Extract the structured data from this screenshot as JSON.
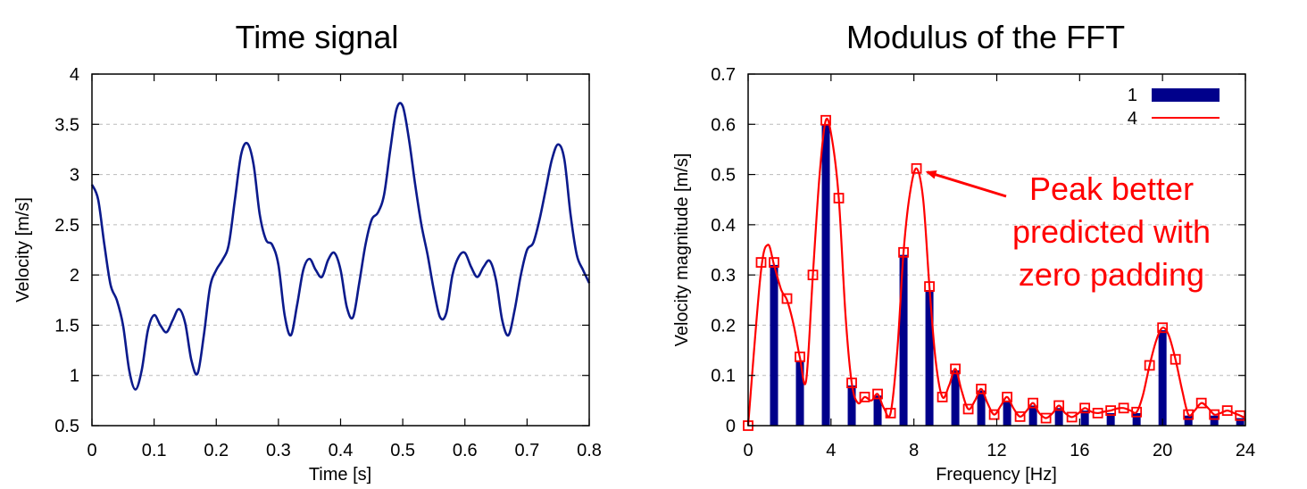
{
  "chart_data": [
    {
      "type": "line",
      "title": "Time signal",
      "xlabel": "Time [s]",
      "ylabel": "Velocity [m/s]",
      "xlim": [
        0,
        0.8
      ],
      "ylim": [
        0.5,
        4
      ],
      "xticks": [
        "0",
        "0.1",
        "0.2",
        "0.3",
        "0.4",
        "0.5",
        "0.6",
        "0.7",
        "0.8"
      ],
      "yticks": [
        "0.5",
        "1",
        "1.5",
        "2",
        "2.5",
        "3",
        "3.5",
        "4"
      ],
      "grid": "horizontal dashed",
      "color": "#0b1a8c",
      "series": [
        {
          "x": [
            0,
            0.01,
            0.02,
            0.03,
            0.04,
            0.05,
            0.06,
            0.07,
            0.08,
            0.09,
            0.1,
            0.11,
            0.12,
            0.13,
            0.14,
            0.15,
            0.16,
            0.17,
            0.18,
            0.19,
            0.2,
            0.21,
            0.22,
            0.23,
            0.24,
            0.25,
            0.26,
            0.27,
            0.28,
            0.29,
            0.3,
            0.31,
            0.32,
            0.33,
            0.34,
            0.35,
            0.36,
            0.37,
            0.38,
            0.39,
            0.4,
            0.41,
            0.42,
            0.43,
            0.44,
            0.45,
            0.46,
            0.47,
            0.48,
            0.49,
            0.5,
            0.51,
            0.52,
            0.53,
            0.54,
            0.55,
            0.56,
            0.57,
            0.58,
            0.59,
            0.6,
            0.61,
            0.62,
            0.63,
            0.64,
            0.65,
            0.66,
            0.67,
            0.68,
            0.69,
            0.7,
            0.71,
            0.72,
            0.73,
            0.74,
            0.75,
            0.76,
            0.77,
            0.78,
            0.79,
            0.8
          ],
          "values": [
            2.9,
            2.75,
            2.3,
            1.9,
            1.75,
            1.5,
            1.05,
            0.86,
            1.05,
            1.45,
            1.6,
            1.5,
            1.43,
            1.55,
            1.66,
            1.52,
            1.15,
            1.02,
            1.4,
            1.88,
            2.05,
            2.15,
            2.3,
            2.75,
            3.2,
            3.31,
            3.1,
            2.6,
            2.35,
            2.3,
            2.1,
            1.6,
            1.4,
            1.7,
            2.05,
            2.16,
            2.05,
            1.98,
            2.15,
            2.22,
            2.05,
            1.68,
            1.58,
            1.92,
            2.3,
            2.55,
            2.62,
            2.8,
            3.25,
            3.65,
            3.68,
            3.35,
            2.9,
            2.5,
            2.2,
            1.85,
            1.58,
            1.62,
            2.0,
            2.18,
            2.22,
            2.08,
            1.98,
            2.08,
            2.14,
            1.95,
            1.55,
            1.4,
            1.65,
            2.0,
            2.25,
            2.32,
            2.55,
            2.85,
            3.15,
            3.3,
            3.15,
            2.6,
            2.2,
            2.05,
            1.92
          ]
        }
      ]
    },
    {
      "type": "bar",
      "title": "Modulus of the FFT",
      "xlabel": "Frequency [Hz]",
      "ylabel": "Velocity magnitude [m/s]",
      "xlim": [
        0,
        24
      ],
      "ylim": [
        0,
        0.7
      ],
      "xticks": [
        "0",
        "4",
        "8",
        "12",
        "16",
        "20",
        "24"
      ],
      "yticks": [
        "0",
        "0.1",
        "0.2",
        "0.3",
        "0.4",
        "0.5",
        "0.6",
        "0.7"
      ],
      "grid": "horizontal dashed",
      "legend_position": "top-right",
      "series": [
        {
          "name": "1",
          "type": "bar",
          "color": "#00008b",
          "x": [
            1.25,
            2.5,
            3.75,
            5.0,
            6.25,
            7.5,
            8.75,
            10.0,
            11.25,
            12.5,
            13.75,
            15.0,
            16.25,
            17.5,
            18.75,
            20.0,
            21.25,
            22.5,
            23.75
          ],
          "values": [
            0.32,
            0.13,
            0.6,
            0.08,
            0.06,
            0.34,
            0.27,
            0.11,
            0.07,
            0.05,
            0.04,
            0.035,
            0.03,
            0.025,
            0.025,
            0.19,
            0.02,
            0.02,
            0.015
          ]
        },
        {
          "name": "4",
          "type": "line",
          "color": "#ff0000",
          "markers_x": [
            0,
            0.625,
            1.25,
            1.875,
            2.5,
            3.125,
            3.75,
            4.375,
            5.0,
            5.625,
            6.25,
            6.875,
            7.5,
            8.125,
            8.75,
            9.375,
            10.0,
            10.625,
            11.25,
            11.875,
            12.5,
            13.125,
            13.75,
            14.375,
            15.0,
            15.625,
            16.25,
            16.875,
            17.5,
            18.125,
            18.75,
            19.375,
            20.0,
            20.625,
            21.25,
            21.875,
            22.5,
            23.125,
            23.75
          ],
          "markers_y": [
            0.0,
            0.325,
            0.325,
            0.253,
            0.137,
            0.3,
            0.608,
            0.453,
            0.085,
            0.057,
            0.063,
            0.025,
            0.345,
            0.512,
            0.277,
            0.057,
            0.113,
            0.033,
            0.073,
            0.022,
            0.057,
            0.018,
            0.045,
            0.015,
            0.04,
            0.017,
            0.035,
            0.025,
            0.03,
            0.035,
            0.027,
            0.12,
            0.195,
            0.132,
            0.022,
            0.045,
            0.022,
            0.03,
            0.02
          ],
          "curve_x": [
            0,
            0.6,
            0.95,
            1.25,
            1.6,
            1.875,
            2.2,
            2.5,
            2.8,
            3.125,
            3.45,
            3.75,
            4.05,
            4.375,
            4.7,
            5.0,
            5.3,
            5.625,
            5.95,
            6.25,
            6.55,
            6.875,
            7.2,
            7.5,
            7.8,
            8.125,
            8.45,
            8.75,
            9.05,
            9.375,
            9.7,
            10.0,
            10.3,
            10.625,
            10.95,
            11.25,
            11.55,
            11.875,
            12.2,
            12.5,
            12.8,
            13.125,
            13.45,
            13.75,
            14.05,
            14.375,
            14.7,
            15.0,
            15.3,
            15.625,
            15.95,
            16.25,
            16.55,
            16.875,
            17.2,
            17.5,
            17.8,
            18.125,
            18.45,
            18.75,
            19.05,
            19.375,
            19.7,
            20.0,
            20.3,
            20.625,
            20.95,
            21.25,
            21.55,
            21.875,
            22.2,
            22.5,
            22.8,
            23.125,
            23.45,
            23.75,
            24.0
          ],
          "curve_y": [
            0.0,
            0.3,
            0.36,
            0.32,
            0.27,
            0.25,
            0.2,
            0.135,
            0.09,
            0.3,
            0.5,
            0.608,
            0.57,
            0.453,
            0.22,
            0.085,
            0.045,
            0.057,
            0.05,
            0.063,
            0.035,
            0.025,
            0.15,
            0.345,
            0.46,
            0.512,
            0.45,
            0.277,
            0.13,
            0.057,
            0.08,
            0.113,
            0.07,
            0.033,
            0.05,
            0.073,
            0.045,
            0.022,
            0.04,
            0.057,
            0.035,
            0.018,
            0.03,
            0.045,
            0.025,
            0.015,
            0.025,
            0.04,
            0.025,
            0.017,
            0.025,
            0.035,
            0.028,
            0.025,
            0.028,
            0.03,
            0.034,
            0.035,
            0.03,
            0.027,
            0.06,
            0.12,
            0.17,
            0.195,
            0.18,
            0.132,
            0.07,
            0.022,
            0.03,
            0.045,
            0.035,
            0.022,
            0.025,
            0.03,
            0.025,
            0.02,
            0.015
          ]
        }
      ],
      "annotation": {
        "lines": [
          "Peak better",
          "predicted with",
          "zero padding"
        ],
        "color": "#ff0000",
        "arrow_target_x": 8.125,
        "arrow_target_y": 0.512
      }
    }
  ]
}
